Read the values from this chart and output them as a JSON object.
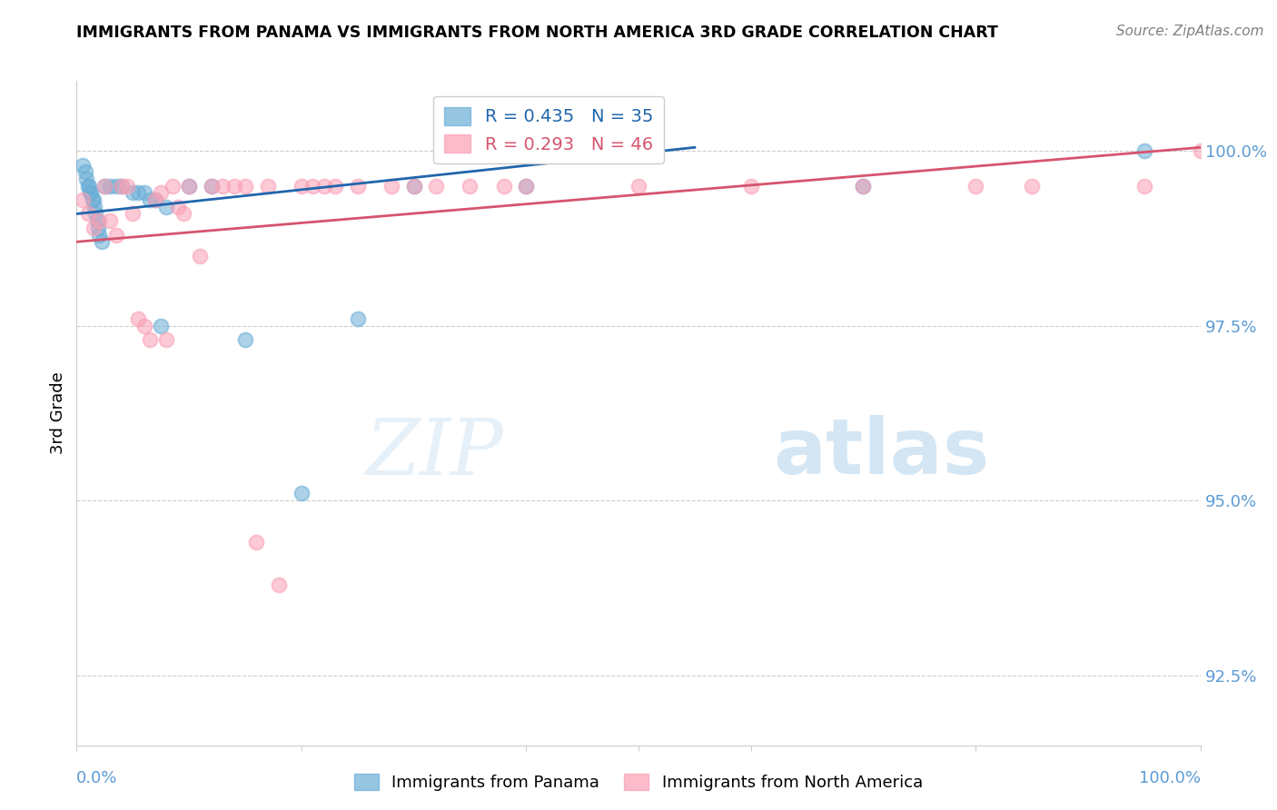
{
  "title": "IMMIGRANTS FROM PANAMA VS IMMIGRANTS FROM NORTH AMERICA 3RD GRADE CORRELATION CHART",
  "source": "Source: ZipAtlas.com",
  "ylabel": "3rd Grade",
  "yticks": [
    92.5,
    95.0,
    97.5,
    100.0
  ],
  "xlim": [
    0.0,
    1.0
  ],
  "ylim": [
    91.5,
    101.0
  ],
  "blue_color": "#6baed6",
  "pink_color": "#fa9fb5",
  "blue_line_color": "#2166ac",
  "pink_line_color": "#d6546e",
  "blue_R": 0.435,
  "blue_N": 35,
  "pink_R": 0.293,
  "pink_N": 46,
  "blue_scatter_x": [
    0.005,
    0.008,
    0.009,
    0.01,
    0.011,
    0.012,
    0.013,
    0.014,
    0.015,
    0.016,
    0.017,
    0.018,
    0.019,
    0.02,
    0.022,
    0.025,
    0.03,
    0.035,
    0.04,
    0.05,
    0.055,
    0.06,
    0.065,
    0.07,
    0.075,
    0.08,
    0.1,
    0.12,
    0.15,
    0.2,
    0.25,
    0.3,
    0.4,
    0.7,
    0.95
  ],
  "blue_scatter_y": [
    99.8,
    99.7,
    99.6,
    99.5,
    99.5,
    99.4,
    99.4,
    99.3,
    99.3,
    99.2,
    99.1,
    99.0,
    98.9,
    98.8,
    98.7,
    99.5,
    99.5,
    99.5,
    99.5,
    99.4,
    99.4,
    99.4,
    99.3,
    99.3,
    97.5,
    99.2,
    99.5,
    99.5,
    97.3,
    95.1,
    97.6,
    99.5,
    99.5,
    99.5,
    100.0
  ],
  "pink_scatter_x": [
    0.005,
    0.01,
    0.015,
    0.02,
    0.025,
    0.03,
    0.035,
    0.04,
    0.045,
    0.05,
    0.055,
    0.06,
    0.065,
    0.07,
    0.075,
    0.08,
    0.085,
    0.09,
    0.095,
    0.1,
    0.11,
    0.12,
    0.13,
    0.14,
    0.15,
    0.16,
    0.17,
    0.18,
    0.2,
    0.21,
    0.22,
    0.23,
    0.25,
    0.28,
    0.3,
    0.32,
    0.35,
    0.38,
    0.4,
    0.5,
    0.6,
    0.7,
    0.8,
    0.85,
    0.95,
    1.0
  ],
  "pink_scatter_y": [
    99.3,
    99.1,
    98.9,
    99.0,
    99.5,
    99.0,
    98.8,
    99.5,
    99.5,
    99.1,
    97.6,
    97.5,
    97.3,
    99.3,
    99.4,
    97.3,
    99.5,
    99.2,
    99.1,
    99.5,
    98.5,
    99.5,
    99.5,
    99.5,
    99.5,
    94.4,
    99.5,
    93.8,
    99.5,
    99.5,
    99.5,
    99.5,
    99.5,
    99.5,
    99.5,
    99.5,
    99.5,
    99.5,
    99.5,
    99.5,
    99.5,
    99.5,
    99.5,
    99.5,
    99.5,
    100.0
  ],
  "blue_line_x": [
    0.0,
    0.55
  ],
  "blue_line_y": [
    99.1,
    100.05
  ],
  "pink_line_x": [
    0.0,
    1.0
  ],
  "pink_line_y": [
    98.7,
    100.05
  ],
  "watermark_zip": "ZIP",
  "watermark_atlas": "atlas",
  "background_color": "#ffffff",
  "grid_color": "#cccccc"
}
